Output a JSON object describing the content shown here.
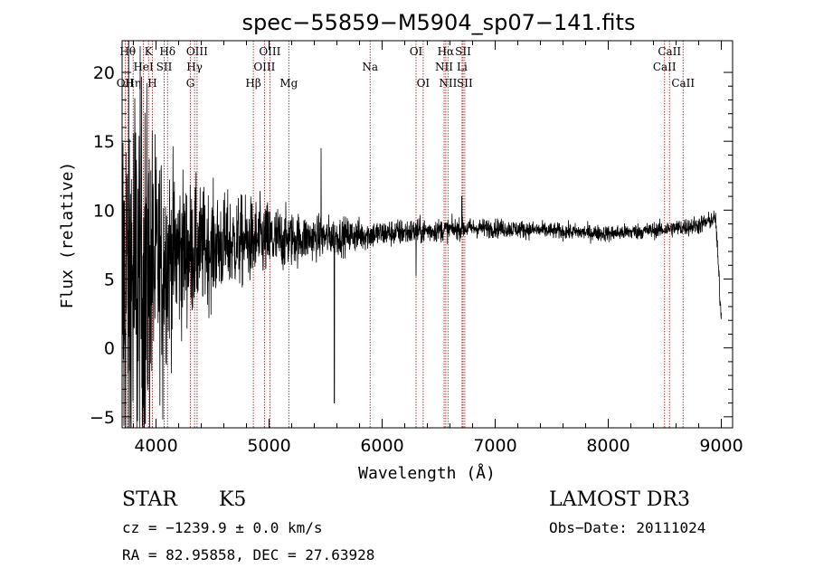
{
  "chart_data": {
    "type": "line",
    "title": "spec−55859−M5904_sp07−141.fits",
    "xlabel": "Wavelength (Å)",
    "ylabel": "Flux (relative)",
    "xlim": [
      3700,
      9100
    ],
    "ylim": [
      -5.8,
      22.3
    ],
    "x_ticks": [
      4000,
      5000,
      6000,
      7000,
      8000,
      9000
    ],
    "x_tick_labels": [
      "4000",
      "5000",
      "6000",
      "7000",
      "8000",
      "9000"
    ],
    "y_ticks": [
      -5,
      0,
      5,
      10,
      15,
      20
    ],
    "y_tick_labels": [
      "−5",
      "0",
      "5",
      "10",
      "15",
      "20"
    ],
    "spectrum_envelope": {
      "x": [
        3700,
        3800,
        3900,
        4000,
        4100,
        4200,
        4300,
        4400,
        4500,
        4600,
        4700,
        4800,
        4900,
        5000,
        5200,
        5400,
        5600,
        5800,
        6000,
        6200,
        6400,
        6600,
        6800,
        7000,
        7500,
        8000,
        8500,
        8800,
        8950,
        9000
      ],
      "mean": [
        4.0,
        4.5,
        5.0,
        6.0,
        6.5,
        7.0,
        7.0,
        7.2,
        7.3,
        7.5,
        7.6,
        7.7,
        7.8,
        7.8,
        7.9,
        8.0,
        8.1,
        8.2,
        8.3,
        8.4,
        8.5,
        8.6,
        8.7,
        8.7,
        8.5,
        8.3,
        8.6,
        8.9,
        9.4,
        2.0
      ],
      "noise": [
        9.0,
        8.5,
        7.0,
        4.5,
        3.5,
        3.0,
        2.5,
        2.2,
        2.0,
        1.8,
        1.7,
        1.6,
        1.5,
        1.4,
        1.0,
        0.8,
        0.7,
        0.6,
        0.5,
        0.5,
        0.45,
        0.4,
        0.35,
        0.35,
        0.3,
        0.3,
        0.3,
        0.35,
        0.3,
        0.5
      ]
    },
    "spectrum_spikes": [
      {
        "x": 5577,
        "y": -4.0
      },
      {
        "x": 5460,
        "y": 14.5
      },
      {
        "x": 6300,
        "y": 5.2
      },
      {
        "x": 6705,
        "y": 11.0
      },
      {
        "x": 4060,
        "y": -5.2
      },
      {
        "x": 3905,
        "y": -5.5
      }
    ],
    "spectral_lines": [
      {
        "wavelength": 3727,
        "label": "OII",
        "row": 3
      },
      {
        "wavelength": 3750,
        "label": "Hθ",
        "row": 1
      },
      {
        "wavelength": 3798,
        "label": "Hη",
        "row": 3
      },
      {
        "wavelength": 3889,
        "label": "HeI",
        "row": 2
      },
      {
        "wavelength": 3934,
        "label": "K",
        "row": 1
      },
      {
        "wavelength": 3968,
        "label": "H",
        "row": 3
      },
      {
        "wavelength": 4072,
        "label": "SII",
        "row": 2
      },
      {
        "wavelength": 4102,
        "label": "Hδ",
        "row": 1
      },
      {
        "wavelength": 4304,
        "label": "G",
        "row": 3
      },
      {
        "wavelength": 4341,
        "label": "Hγ",
        "row": 2
      },
      {
        "wavelength": 4363,
        "label": "OIII",
        "row": 1
      },
      {
        "wavelength": 4861,
        "label": "Hβ",
        "row": 3
      },
      {
        "wavelength": 4959,
        "label": "OIII",
        "row": 2
      },
      {
        "wavelength": 5007,
        "label": "OIII",
        "row": 1
      },
      {
        "wavelength": 5175,
        "label": "Mg",
        "row": 3
      },
      {
        "wavelength": 5894,
        "label": "Na",
        "row": 2
      },
      {
        "wavelength": 6300,
        "label": "OI",
        "row": 1
      },
      {
        "wavelength": 6363,
        "label": "OI",
        "row": 3
      },
      {
        "wavelength": 6548,
        "label": "NII",
        "row": 2
      },
      {
        "wavelength": 6563,
        "label": "Hα",
        "row": 1
      },
      {
        "wavelength": 6583,
        "label": "NII",
        "row": 3
      },
      {
        "wavelength": 6707,
        "label": "Li",
        "row": 2
      },
      {
        "wavelength": 6716,
        "label": "SII",
        "row": 1
      },
      {
        "wavelength": 6731,
        "label": "SII",
        "row": 3
      },
      {
        "wavelength": 8498,
        "label": "CaII",
        "row": 2
      },
      {
        "wavelength": 8542,
        "label": "CaII",
        "row": 1
      },
      {
        "wavelength": 8662,
        "label": "CaII",
        "row": 3
      }
    ]
  },
  "info": {
    "class": "STAR",
    "subclass": "K5",
    "survey": "LAMOST DR3",
    "cz_line": "cz = −1239.9 ± 0.0 km/s",
    "obs_date_line": "Obs−Date: 20111024",
    "coords_line": "RA =  82.95858, DEC =  27.63928"
  },
  "colors": {
    "spectrum": "#000000",
    "line_marker": "#b22222",
    "frame": "#000000"
  }
}
